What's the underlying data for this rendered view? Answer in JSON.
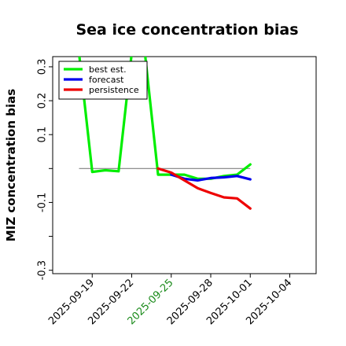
{
  "chart_data": {
    "type": "line",
    "title": "Sea ice concentration bias",
    "ylabel": "MIZ concentration bias",
    "xlabel": "",
    "xlim": [
      "2025-09-16",
      "2025-10-06"
    ],
    "ylim": [
      -0.31,
      0.33
    ],
    "yticks": [
      {
        "value": 0.3,
        "label": "0.3"
      },
      {
        "value": 0.2,
        "label": "0.2"
      },
      {
        "value": 0.1,
        "label": "0.1"
      },
      {
        "value": -0.1,
        "label": "-0.1"
      },
      {
        "value": -0.3,
        "label": "-0.3"
      }
    ],
    "minor_yticks": [
      0.0,
      -0.2
    ],
    "xticks": [
      {
        "date": "2025-09-19",
        "label": "2025-09-19",
        "color": "#000000"
      },
      {
        "date": "2025-09-22",
        "label": "2025-09-22",
        "color": "#000000"
      },
      {
        "date": "2025-09-25",
        "label": "2025-09-25",
        "color": "#1a8a1a"
      },
      {
        "date": "2025-09-28",
        "label": "2025-09-28",
        "color": "#000000"
      },
      {
        "date": "2025-10-01",
        "label": "2025-10-01",
        "color": "#000000"
      },
      {
        "date": "2025-10-04",
        "label": "2025-10-04",
        "color": "#000000"
      }
    ],
    "reference_line": {
      "y": 0.0,
      "x_start": "2025-09-18",
      "x_end": "2025-10-01",
      "color": "#808080"
    },
    "legend_position": "top-left",
    "series": [
      {
        "name": "best est.",
        "color": "#00ee00",
        "points": [
          {
            "x": "2025-09-18",
            "y": 0.34
          },
          {
            "x": "2025-09-19",
            "y": -0.01
          },
          {
            "x": "2025-09-20",
            "y": -0.005
          },
          {
            "x": "2025-09-21",
            "y": -0.008
          },
          {
            "x": "2025-09-22",
            "y": 0.34
          },
          {
            "x": "2025-09-23",
            "y": 0.34
          },
          {
            "x": "2025-09-24",
            "y": -0.018
          },
          {
            "x": "2025-09-25",
            "y": -0.018
          },
          {
            "x": "2025-09-26",
            "y": -0.018
          },
          {
            "x": "2025-09-27",
            "y": -0.03
          },
          {
            "x": "2025-09-28",
            "y": -0.03
          },
          {
            "x": "2025-09-29",
            "y": -0.022
          },
          {
            "x": "2025-09-30",
            "y": -0.018
          },
          {
            "x": "2025-10-01",
            "y": 0.012
          }
        ]
      },
      {
        "name": "forecast",
        "color": "#0000ee",
        "points": [
          {
            "x": "2025-09-25",
            "y": -0.018
          },
          {
            "x": "2025-09-26",
            "y": -0.03
          },
          {
            "x": "2025-09-27",
            "y": -0.035
          },
          {
            "x": "2025-09-28",
            "y": -0.028
          },
          {
            "x": "2025-09-29",
            "y": -0.026
          },
          {
            "x": "2025-09-30",
            "y": -0.022
          },
          {
            "x": "2025-10-01",
            "y": -0.032
          }
        ]
      },
      {
        "name": "persistence",
        "color": "#ee0000",
        "points": [
          {
            "x": "2025-09-24",
            "y": 0.0
          },
          {
            "x": "2025-09-25",
            "y": -0.012
          },
          {
            "x": "2025-09-26",
            "y": -0.035
          },
          {
            "x": "2025-09-27",
            "y": -0.058
          },
          {
            "x": "2025-09-28",
            "y": -0.072
          },
          {
            "x": "2025-09-29",
            "y": -0.085
          },
          {
            "x": "2025-09-30",
            "y": -0.088
          },
          {
            "x": "2025-10-01",
            "y": -0.118
          }
        ]
      }
    ]
  }
}
